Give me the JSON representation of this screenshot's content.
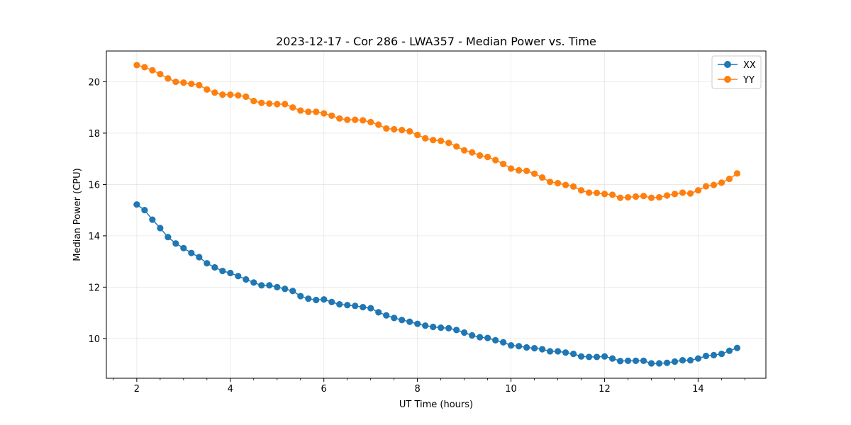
{
  "chart_data": {
    "type": "line",
    "title": "2023-12-17 - Cor 286 - LWA357 - Median Power vs. Time",
    "xlabel": "UT Time (hours)",
    "ylabel": "Median Power (CPU)",
    "xlim": [
      1.35,
      15.45
    ],
    "ylim": [
      8.45,
      21.2
    ],
    "xticks": [
      2,
      4,
      6,
      8,
      10,
      12,
      14
    ],
    "yticks": [
      10,
      12,
      14,
      16,
      18,
      20
    ],
    "xtick_labels": [
      "2",
      "4",
      "6",
      "8",
      "10",
      "12",
      "14"
    ],
    "ytick_labels": [
      "10",
      "12",
      "14",
      "16",
      "18",
      "20"
    ],
    "grid": true,
    "legend_position": "top-right",
    "x_start": 2.0,
    "x_step": 0.1667,
    "series": [
      {
        "name": "XX",
        "color": "#1f77b4",
        "values": [
          15.22,
          15.0,
          14.63,
          14.3,
          13.95,
          13.7,
          13.52,
          13.33,
          13.17,
          12.93,
          12.77,
          12.63,
          12.55,
          12.43,
          12.3,
          12.18,
          12.07,
          12.07,
          12.0,
          11.93,
          11.85,
          11.65,
          11.55,
          11.5,
          11.52,
          11.42,
          11.33,
          11.3,
          11.27,
          11.22,
          11.18,
          11.02,
          10.9,
          10.8,
          10.72,
          10.65,
          10.57,
          10.5,
          10.45,
          10.42,
          10.4,
          10.33,
          10.23,
          10.12,
          10.05,
          10.02,
          9.93,
          9.85,
          9.73,
          9.7,
          9.65,
          9.62,
          9.58,
          9.5,
          9.5,
          9.45,
          9.4,
          9.3,
          9.28,
          9.28,
          9.3,
          9.22,
          9.12,
          9.13,
          9.13,
          9.13,
          9.03,
          9.03,
          9.05,
          9.1,
          9.15,
          9.15,
          9.22,
          9.32,
          9.35,
          9.4,
          9.52,
          9.63
        ]
      },
      {
        "name": "YY",
        "color": "#ff7f0e",
        "values": [
          20.65,
          20.57,
          20.45,
          20.3,
          20.13,
          20.0,
          19.97,
          19.92,
          19.87,
          19.7,
          19.58,
          19.5,
          19.5,
          19.47,
          19.42,
          19.25,
          19.18,
          19.15,
          19.13,
          19.13,
          19.0,
          18.88,
          18.83,
          18.83,
          18.77,
          18.68,
          18.57,
          18.52,
          18.52,
          18.5,
          18.43,
          18.33,
          18.18,
          18.15,
          18.12,
          18.07,
          17.93,
          17.8,
          17.73,
          17.7,
          17.62,
          17.48,
          17.33,
          17.25,
          17.13,
          17.07,
          16.95,
          16.8,
          16.62,
          16.55,
          16.53,
          16.42,
          16.27,
          16.1,
          16.05,
          15.98,
          15.92,
          15.77,
          15.68,
          15.67,
          15.63,
          15.6,
          15.48,
          15.5,
          15.53,
          15.55,
          15.48,
          15.5,
          15.57,
          15.63,
          15.68,
          15.65,
          15.77,
          15.93,
          15.98,
          16.07,
          16.22,
          16.43
        ]
      }
    ]
  }
}
